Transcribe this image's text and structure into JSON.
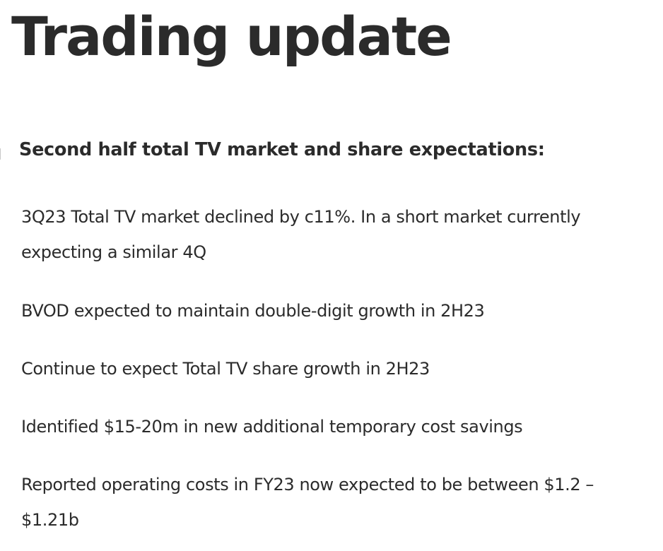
{
  "slide": {
    "title": "Trading update",
    "subheading": "Second half total TV market and share expectations:",
    "bullets": [
      "3Q23 Total TV market declined by c11%.  In a short market currently expecting a similar 4Q",
      "BVOD expected to maintain double-digit growth in 2H23",
      "Continue to expect Total TV share growth in 2H23",
      "Identified $15-20m in new additional temporary cost savings",
      "Reported operating costs in FY23 now expected to be between $1.2 – $1.21b"
    ]
  }
}
